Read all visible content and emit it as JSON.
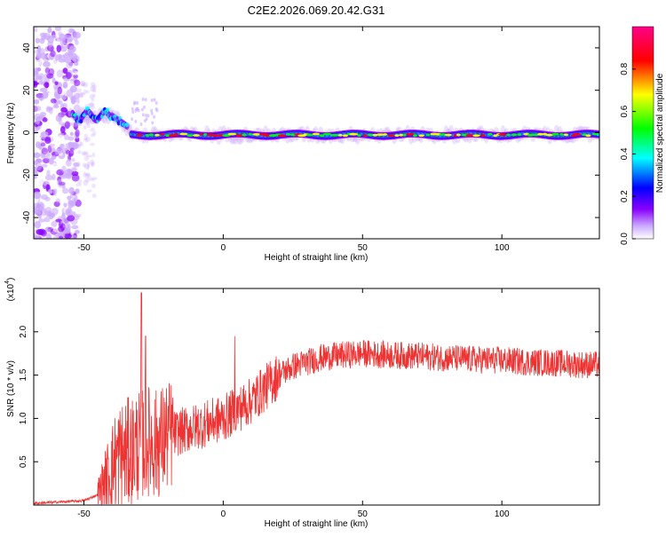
{
  "title": "C2E2.2026.069.20.42.G31",
  "chart_data": [
    {
      "type": "heatmap",
      "xlabel": "Height of straight line (km)",
      "ylabel": "Frequency (Hz)",
      "xlim": [
        -68,
        135
      ],
      "ylim": [
        -50,
        50
      ],
      "xticks": [
        -50,
        0,
        50,
        100
      ],
      "yticks": [
        40,
        20,
        0,
        -20,
        -40
      ],
      "colorbar": {
        "label": "Normalized spectral amplitude",
        "range": [
          0,
          1
        ],
        "ticks": [
          "0.0",
          "0.2",
          "0.4",
          "0.6",
          "0.8"
        ],
        "tick_values": [
          0,
          0.2,
          0.4,
          0.6,
          0.8
        ],
        "colors": [
          "#ffffff",
          "#ccaaff",
          "#8800ff",
          "#0000ff",
          "#00ffff",
          "#00ff00",
          "#ffff00",
          "#ff0000",
          "#ff0088"
        ]
      },
      "features": [
        {
          "x_range": [
            -68,
            -53
          ],
          "freq_range": [
            -50,
            50
          ],
          "amp": 0.15
        },
        {
          "x_range": [
            -53,
            -40
          ],
          "freq_center": 8,
          "amp": 0.45
        },
        {
          "x_range": [
            -40,
            -32
          ],
          "freq_center": 4,
          "amp": 0.5
        },
        {
          "x_range": [
            -32,
            135
          ],
          "freq_center": -1,
          "amp": 0.9
        }
      ]
    },
    {
      "type": "line",
      "xlabel": "Height of straight line (km)",
      "ylabel": "SNR (10 * v/v)",
      "y_multiplier": "(x10^4)",
      "y_multiplier_base": "(x10",
      "y_multiplier_exp": "4",
      "y_multiplier_close": ")",
      "xlim": [
        -68,
        135
      ],
      "ylim": [
        0,
        2.5
      ],
      "xticks": [
        -50,
        0,
        50,
        100
      ],
      "yticks": [
        "0.5",
        "1.0",
        "1.5",
        "2.0"
      ],
      "ytick_values": [
        0.5,
        1.0,
        1.5,
        2.0
      ],
      "color": "#ee3333",
      "series_envelope": {
        "x": [
          -68,
          -50,
          -45,
          -42,
          -38,
          -34,
          -30,
          -27,
          -24,
          -20,
          -15,
          -10,
          -5,
          0,
          5,
          10,
          15,
          20,
          25,
          30,
          35,
          40,
          50,
          60,
          70,
          80,
          90,
          100,
          110,
          120,
          130,
          135
        ],
        "y": [
          0.02,
          0.05,
          0.12,
          0.3,
          0.55,
          0.6,
          0.7,
          0.75,
          0.7,
          0.8,
          0.85,
          0.9,
          0.95,
          1.0,
          1.1,
          1.2,
          1.35,
          1.5,
          1.6,
          1.65,
          1.7,
          1.72,
          1.75,
          1.73,
          1.72,
          1.7,
          1.68,
          1.67,
          1.65,
          1.64,
          1.62,
          1.62
        ]
      }
    }
  ]
}
